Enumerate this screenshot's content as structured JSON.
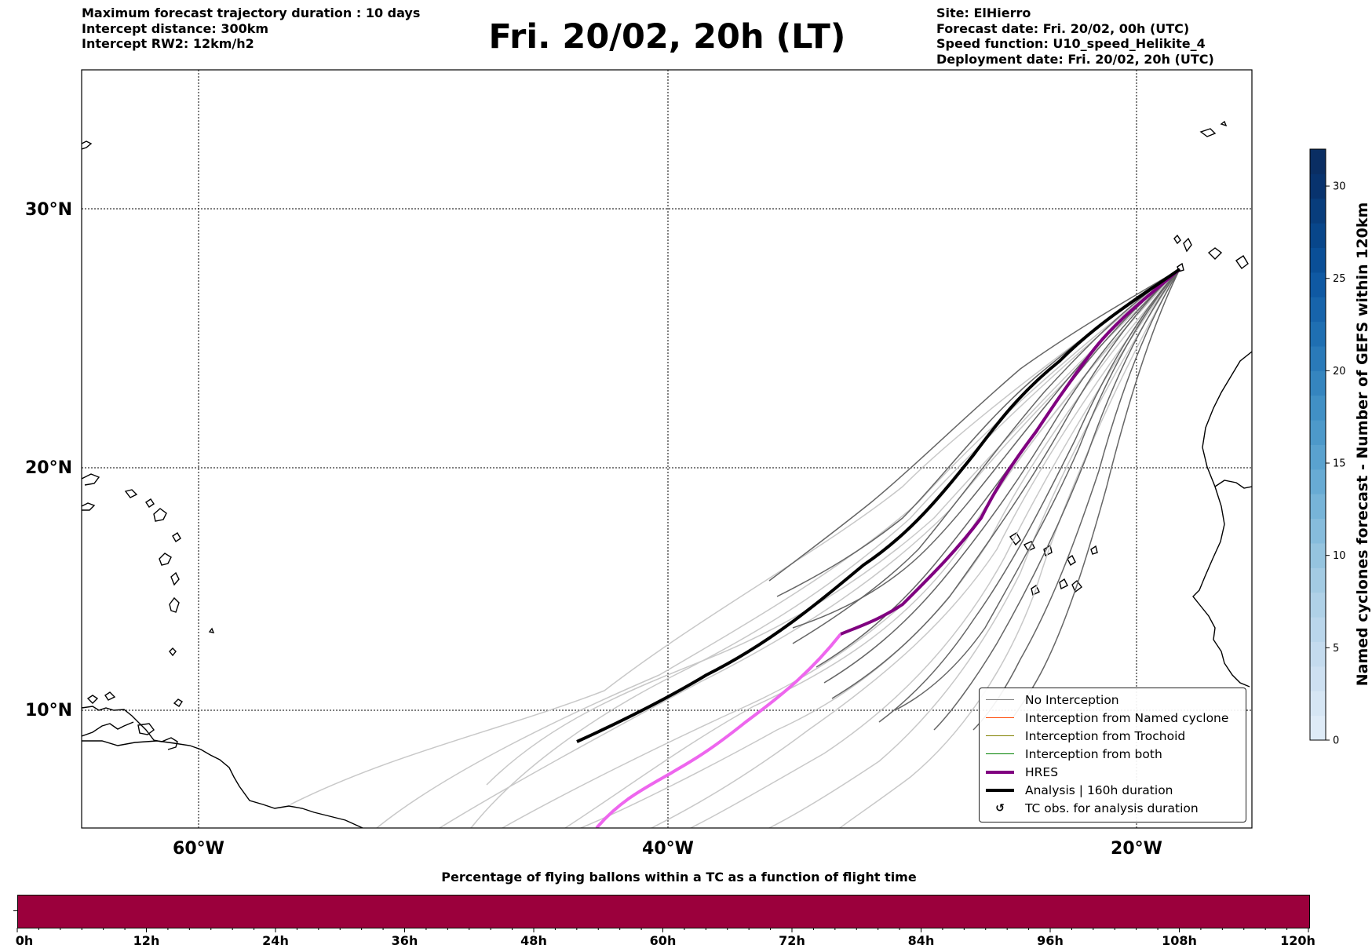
{
  "header_left": {
    "line1": "Maximum forecast trajectory duration : 10 days",
    "line2": "Intercept distance: 300km",
    "line3": "Intercept RW2: 12km/h2"
  },
  "title": "Fri. 20/02, 20h (LT)",
  "header_right": {
    "site": "Site: ElHierro",
    "forecast_date": "Forecast date: Fri. 20/02, 00h (UTC)",
    "speed_function": "Speed function: U10_speed_Helikite_4",
    "deployment_date": "Deployment date: Fri. 20/02, 20h (UTC)"
  },
  "map": {
    "lat_labels": [
      "30°N",
      "20°N",
      "10°N"
    ],
    "lon_labels": [
      "60°W",
      "40°W",
      "20°W"
    ],
    "lat_range": [
      5.3,
      34.6
    ],
    "lon_range": [
      -65,
      -15
    ]
  },
  "legend": {
    "items": [
      {
        "label": "No Interception",
        "color": "#808080"
      },
      {
        "label": "Interception from Named cyclone",
        "color": "#ff4500"
      },
      {
        "label": "Interception from Trochoid",
        "color": "#808000"
      },
      {
        "label": "Interception from both",
        "color": "#008000"
      },
      {
        "label": "HRES",
        "color": "#800080"
      },
      {
        "label": "Analysis | 160h duration",
        "color": "#000000"
      },
      {
        "label": "TC obs. for analysis duration",
        "icon": "cyclone-symbol"
      }
    ]
  },
  "colorbar": {
    "title": "Named cyclones forecast - Number of GEFS within 120km",
    "ticks": [
      "0",
      "5",
      "10",
      "15",
      "20",
      "25",
      "30"
    ],
    "max": 32,
    "colors": [
      "#deebf7",
      "#d6e6f4",
      "#cde0f1",
      "#c4dbee",
      "#bad6eb",
      "#afd1e7",
      "#a3cbe3",
      "#95c4df",
      "#86bcdc",
      "#77b4d8",
      "#68abd4",
      "#5aa2cf",
      "#4d99ca",
      "#4190c5",
      "#3585bf",
      "#2a7ab9",
      "#1f6fb2",
      "#1764ab",
      "#0f59a3",
      "#0a4f97",
      "#08468a",
      "#083d7c",
      "#08336e",
      "#0a2e63"
    ]
  },
  "time_bar": {
    "title": "Percentage of flying ballons within a TC as a function of flight time",
    "fill_color": "#9b003c",
    "labels": [
      "0h",
      "12h",
      "24h",
      "36h",
      "48h",
      "60h",
      "72h",
      "84h",
      "96h",
      "108h",
      "120h"
    ],
    "percent_within_tc": 0
  }
}
